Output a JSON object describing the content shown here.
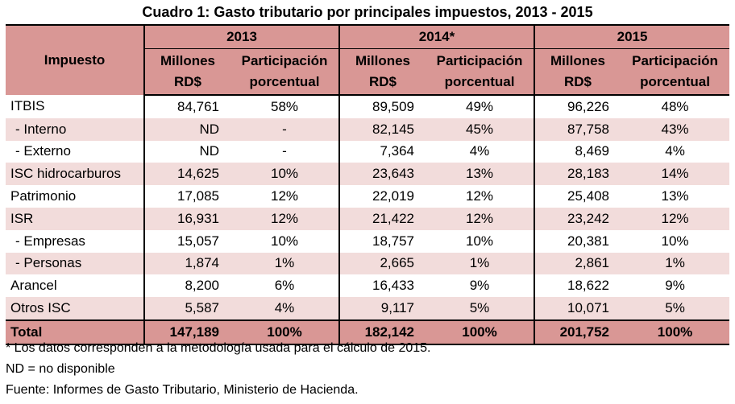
{
  "title": "Cuadro 1: Gasto tributario por principales impuestos, 2013 - 2015",
  "header": {
    "impuesto": "Impuesto",
    "years": [
      "2013",
      "2014*",
      "2015"
    ],
    "col_millones_1": "Millones",
    "col_millones_2": "RD$",
    "col_part_1": "Participación",
    "col_part_2": "porcentual"
  },
  "rows": [
    {
      "name": "ITBIS",
      "v2013": "84,761",
      "p2013": "58%",
      "v2014": "89,509",
      "p2014": "49%",
      "v2015": "96,226",
      "p2015": "48%"
    },
    {
      "name": " - Interno",
      "v2013": "ND",
      "p2013": "-",
      "v2014": "82,145",
      "p2014": "45%",
      "v2015": "87,758",
      "p2015": "43%"
    },
    {
      "name": " - Externo",
      "v2013": "ND",
      "p2013": "-",
      "v2014": "7,364",
      "p2014": "4%",
      "v2015": "8,469",
      "p2015": "4%"
    },
    {
      "name": "ISC hidrocarburos",
      "v2013": "14,625",
      "p2013": "10%",
      "v2014": "23,643",
      "p2014": "13%",
      "v2015": "28,183",
      "p2015": "14%"
    },
    {
      "name": "Patrimonio",
      "v2013": "17,085",
      "p2013": "12%",
      "v2014": "22,019",
      "p2014": "12%",
      "v2015": "25,408",
      "p2015": "13%"
    },
    {
      "name": "ISR",
      "v2013": "16,931",
      "p2013": "12%",
      "v2014": "21,422",
      "p2014": "12%",
      "v2015": "23,242",
      "p2015": "12%"
    },
    {
      "name": " - Empresas",
      "v2013": "15,057",
      "p2013": "10%",
      "v2014": "18,757",
      "p2014": "10%",
      "v2015": "20,381",
      "p2015": "10%"
    },
    {
      "name": " - Personas",
      "v2013": "1,874",
      "p2013": "1%",
      "v2014": "2,665",
      "p2014": "1%",
      "v2015": "2,861",
      "p2015": "1%"
    },
    {
      "name": "Arancel",
      "v2013": "8,200",
      "p2013": "6%",
      "v2014": "16,433",
      "p2014": "9%",
      "v2015": "18,622",
      "p2015": "9%"
    },
    {
      "name": "Otros ISC",
      "v2013": "5,587",
      "p2013": "4%",
      "v2014": "9,117",
      "p2014": "5%",
      "v2015": "10,071",
      "p2015": "5%"
    }
  ],
  "total": {
    "name": "Total",
    "v2013": "147,189",
    "p2013": "100%",
    "v2014": "182,142",
    "p2014": "100%",
    "v2015": "201,752",
    "p2015": "100%"
  },
  "notes": [
    "* Los datos corresponden a la metodología usada para el cálculo de 2015.",
    "ND = no disponible",
    "Fuente: Informes de Gasto Tributario, Ministerio de Hacienda."
  ],
  "colors": {
    "header_bg": "#d99795",
    "stripe_bg": "#f2dcdb"
  }
}
